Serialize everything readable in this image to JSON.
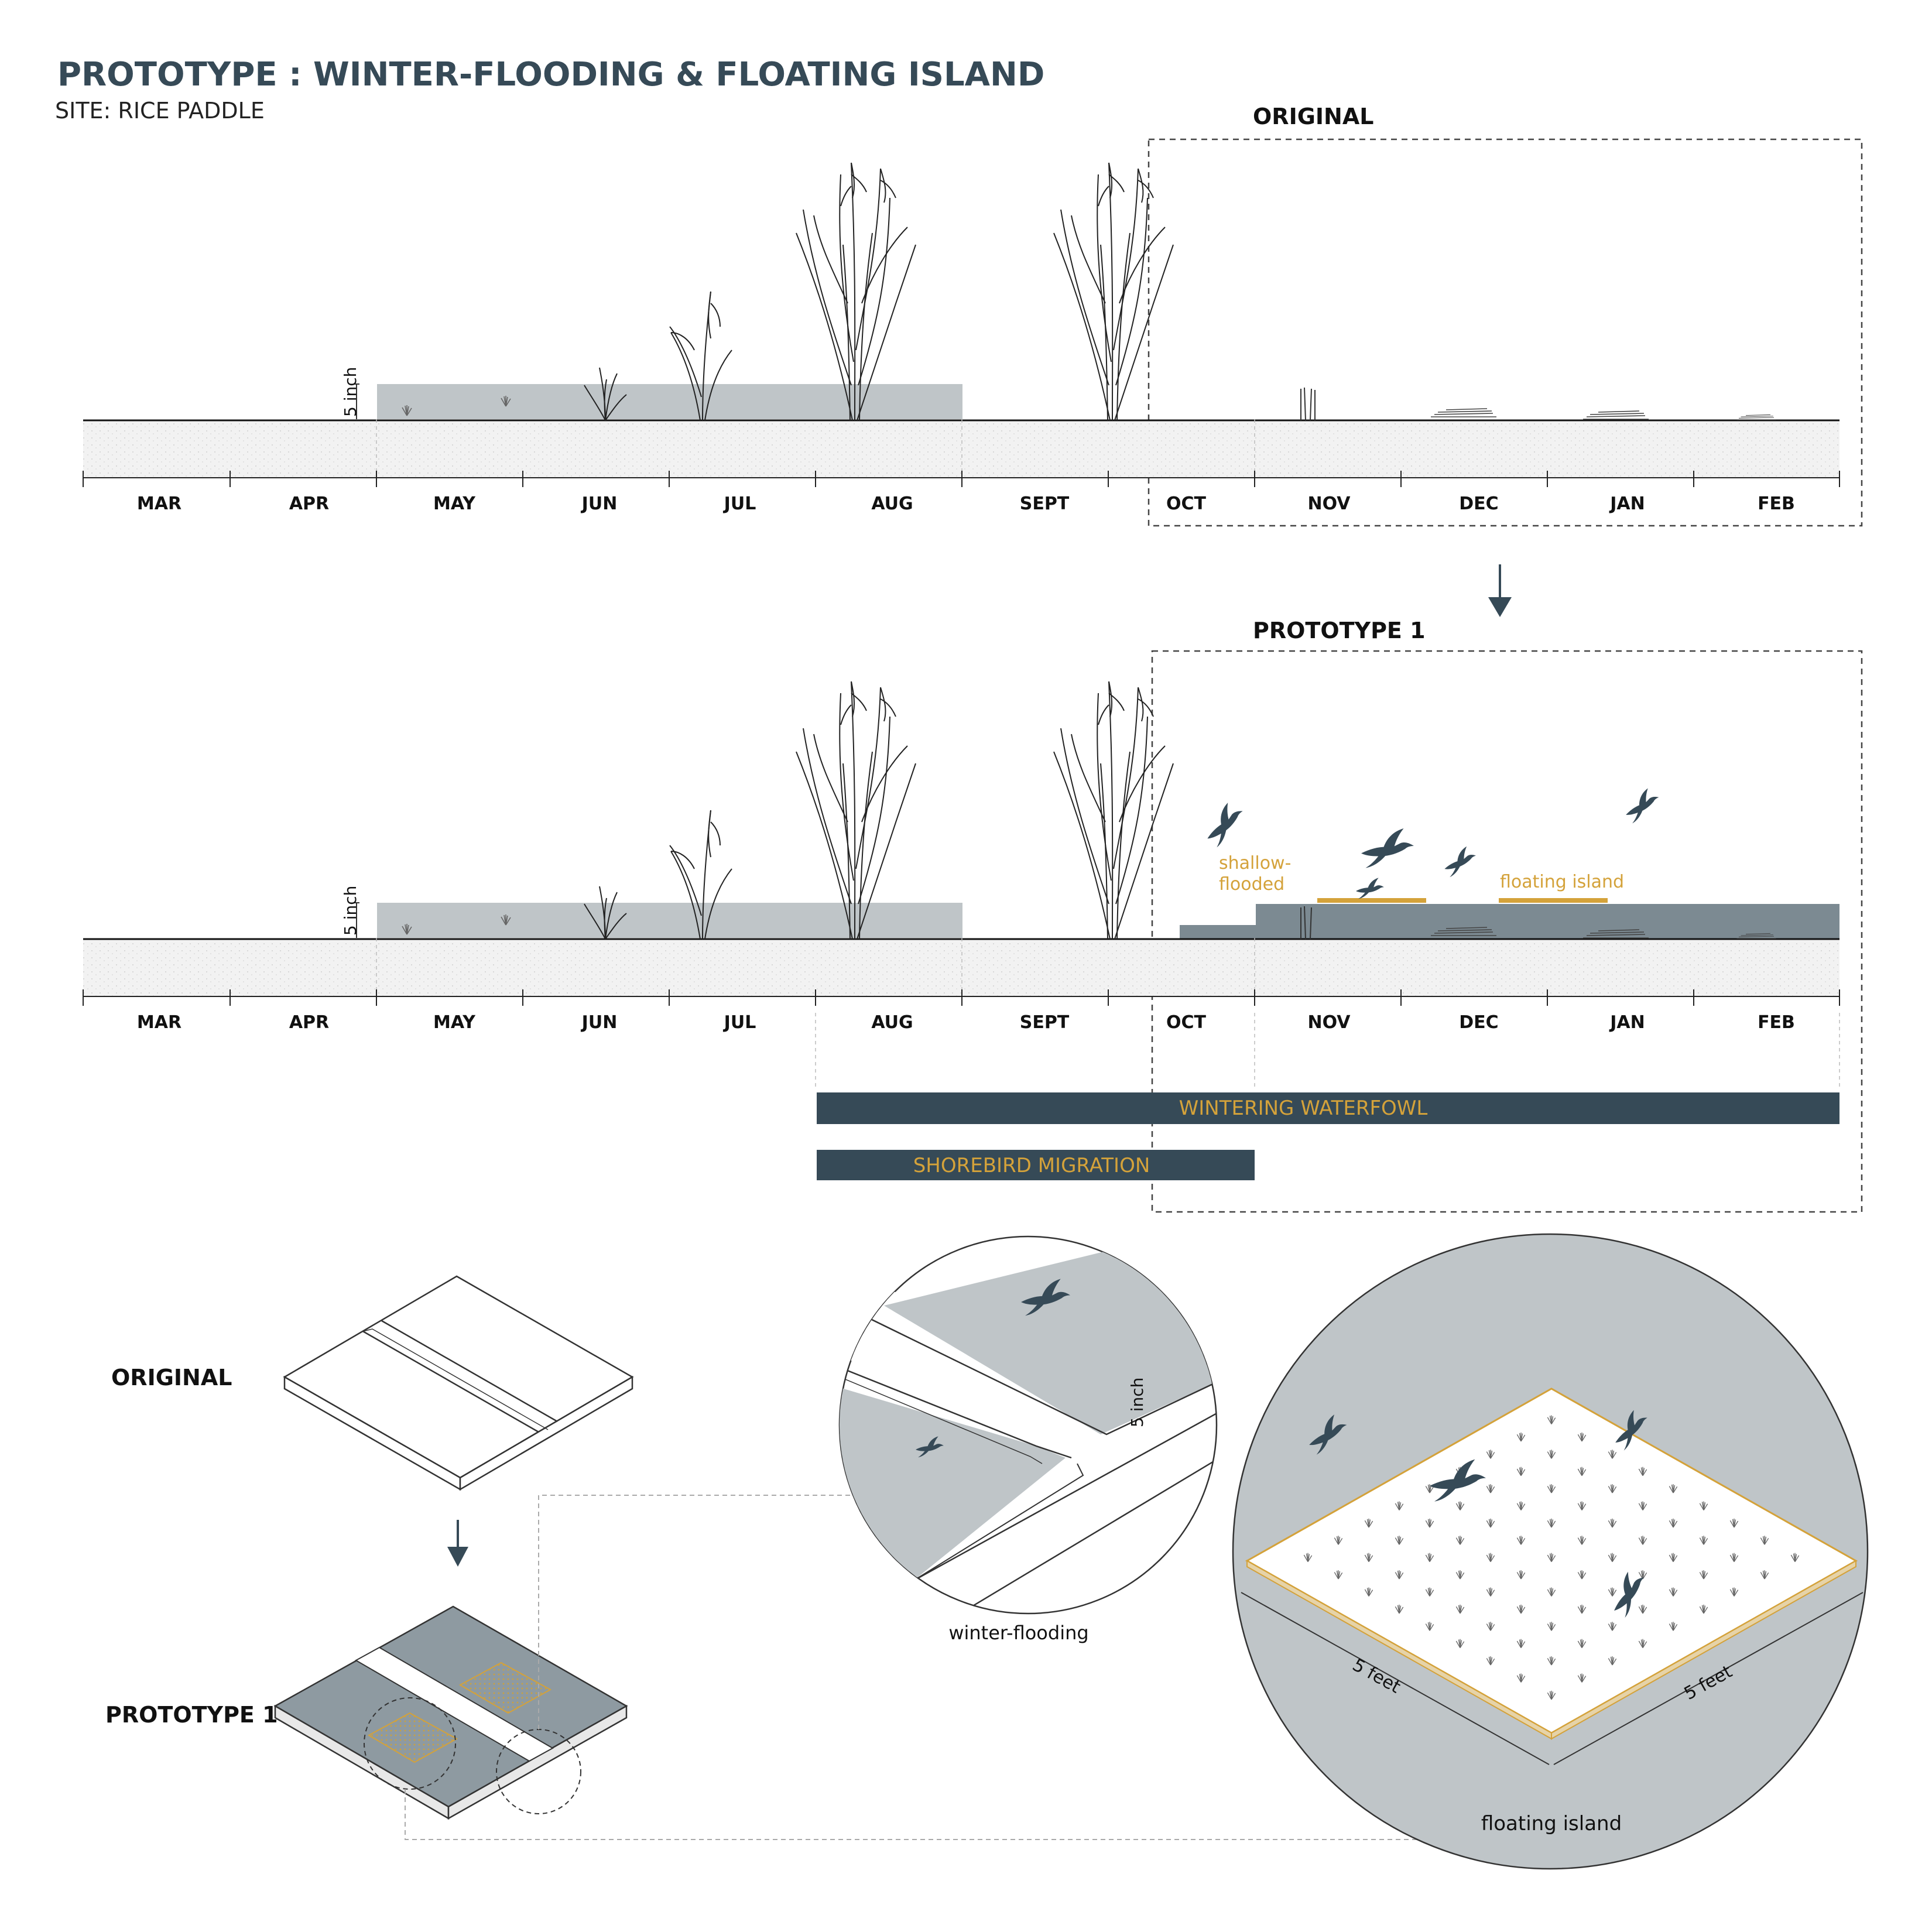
{
  "header": {
    "title": "PROTOTYPE : WINTER-FLOODING & FLOATING ISLAND",
    "subtitle": "SITE: RICE PADDLE"
  },
  "timeline_original": {
    "label": "ORIGINAL",
    "depth_label": "5 inch",
    "months": [
      "MAR",
      "APR",
      "MAY",
      "JUN",
      "JUL",
      "AUG",
      "SEPT",
      "OCT",
      "NOV",
      "DEC",
      "JAN",
      "FEB"
    ]
  },
  "timeline_prototype": {
    "label": "PROTOTYPE 1",
    "depth_label": "5 inch",
    "months": [
      "MAR",
      "APR",
      "MAY",
      "JUN",
      "JUL",
      "AUG",
      "SEPT",
      "OCT",
      "NOV",
      "DEC",
      "JAN",
      "FEB"
    ],
    "annotation_shallow_line1": "shallow-",
    "annotation_shallow_line2": "flooded",
    "annotation_floating": "floating island"
  },
  "bars": [
    {
      "label": "WINTERING WATERFOWL"
    },
    {
      "label": "SHOREBIRD MIGRATION"
    }
  ],
  "axon": {
    "original_label": "ORIGINAL",
    "prototype_label": "PROTOTYPE  1"
  },
  "detail_flooding": {
    "caption": "winter-flooding",
    "depth_label": "5 inch"
  },
  "detail_island": {
    "caption": "floating island",
    "dim_left": "5 feet",
    "dim_right": "5 feet"
  },
  "colors": {
    "dark_slate": "#364a57",
    "gold": "#d4a23a",
    "water_light": "#bfc5c8",
    "water_dark": "#7c8a92",
    "soil": "#f0f0f0"
  }
}
